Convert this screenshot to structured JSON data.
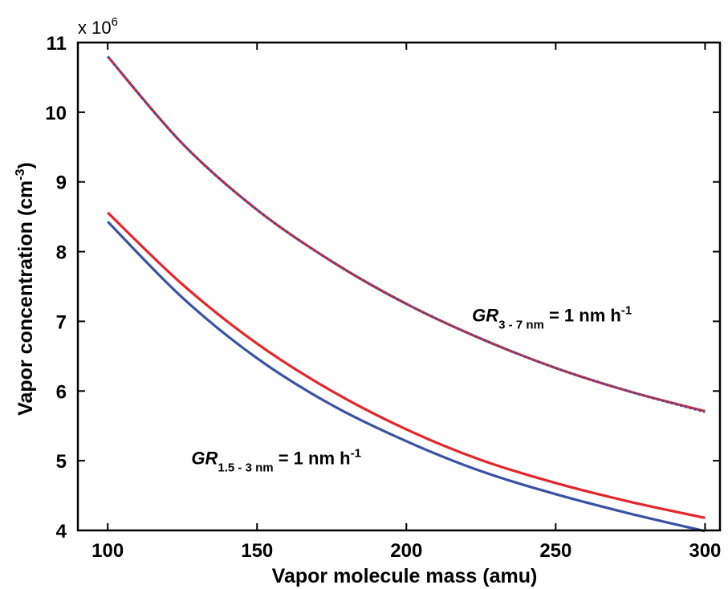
{
  "chart_data": {
    "type": "line",
    "title": "",
    "xlabel": "Vapor molecule mass  (amu)",
    "ylabel": "Vapor concentration  (cm",
    "ylabel_sup": "-3",
    "ylabel_close": ")",
    "y_multiplier": "x 10",
    "y_multiplier_exp": "6",
    "xlim": [
      90,
      305
    ],
    "ylim": [
      4,
      11
    ],
    "x_ticks": [
      100,
      150,
      200,
      250,
      300
    ],
    "y_ticks": [
      4,
      5,
      6,
      7,
      8,
      9,
      10,
      11
    ],
    "grid": false,
    "x": [
      100,
      125,
      150,
      175,
      200,
      225,
      250,
      275,
      300
    ],
    "series": [
      {
        "color": "#e3262b",
        "style": "solid",
        "values": [
          8.56,
          7.53,
          6.68,
          6.0,
          5.45,
          5.01,
          4.68,
          4.41,
          4.18
        ]
      },
      {
        "color": "#3a52a4",
        "style": "solid",
        "values": [
          8.43,
          7.34,
          6.47,
          5.8,
          5.28,
          4.85,
          4.52,
          4.24,
          3.99
        ]
      },
      {
        "color": "#e3262b",
        "style": "solid",
        "values": [
          10.8,
          9.55,
          8.6,
          7.86,
          7.25,
          6.75,
          6.33,
          5.99,
          5.71
        ]
      },
      {
        "color": "#3a52a4",
        "style": "dotted",
        "values": [
          10.8,
          9.55,
          8.6,
          7.86,
          7.25,
          6.75,
          6.33,
          5.99,
          5.7
        ]
      }
    ],
    "annotations": [
      {
        "text": "GR",
        "sub": "3 - 7 nm",
        "rest": " = 1 nm h",
        "sup": "-1",
        "x": 222,
        "y": 7.0
      },
      {
        "text": "GR",
        "sub": "1.5 - 3 nm",
        "rest": " = 1 nm h",
        "sup": "-1",
        "x": 128,
        "y": 4.95
      }
    ]
  }
}
